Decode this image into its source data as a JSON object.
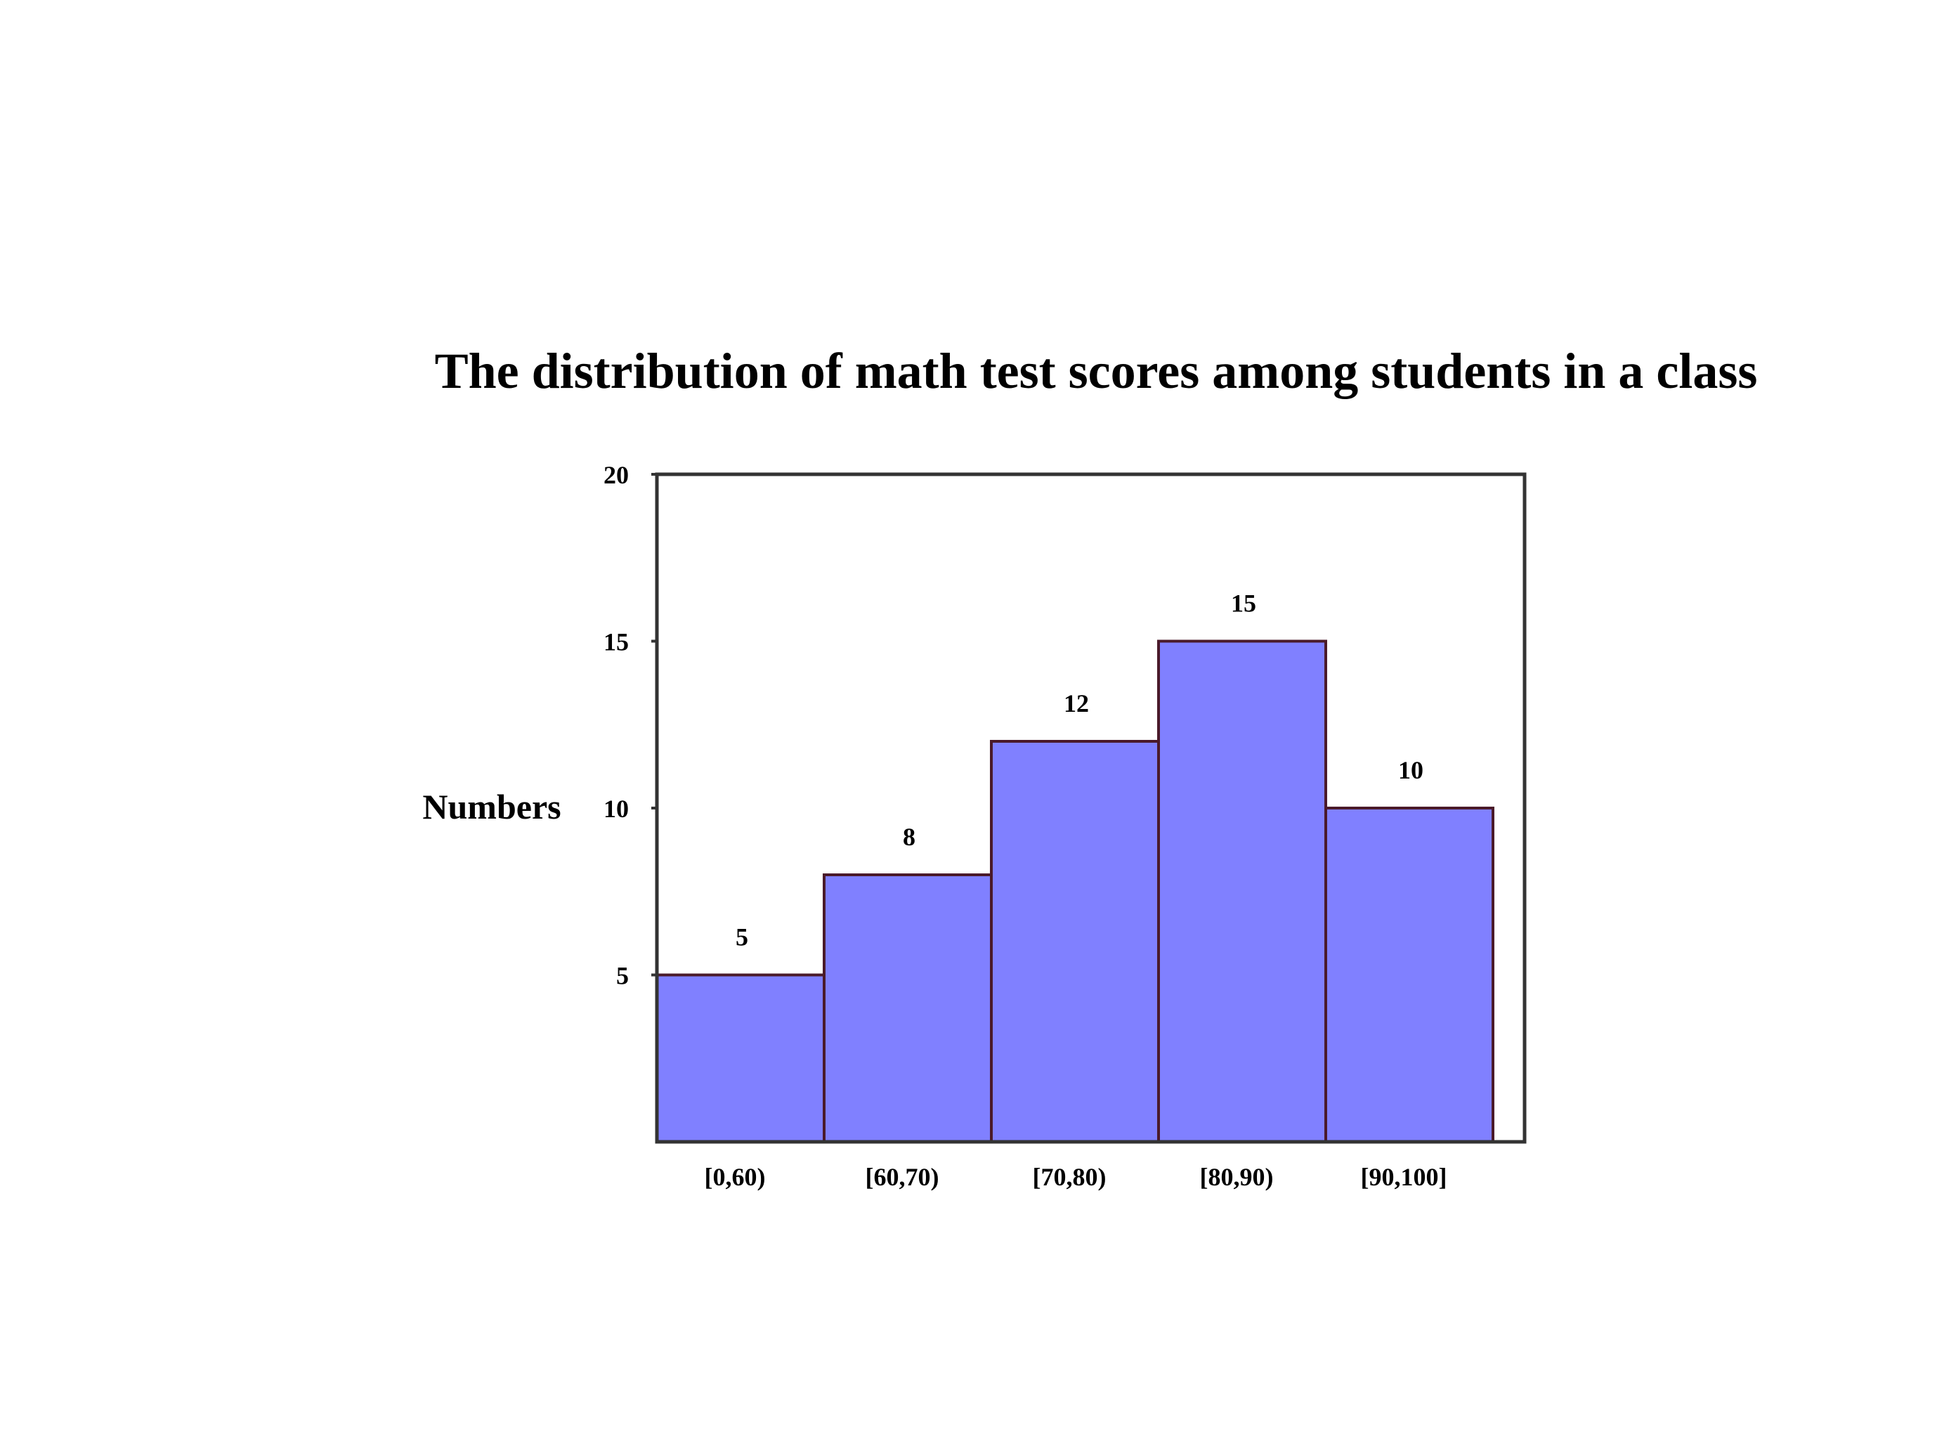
{
  "chart_data": {
    "type": "bar",
    "title": "The distribution of math test scores among students in a class",
    "ylabel": "Numbers",
    "xlabel": "",
    "categories": [
      "[0,60)",
      "[60,70)",
      "[70,80)",
      "[80,90)",
      "[90,100]"
    ],
    "values": [
      5,
      8,
      12,
      15,
      10
    ],
    "ylim": [
      0,
      20
    ],
    "yticks": [
      5,
      10,
      15,
      20
    ],
    "grid": false,
    "legend": "none",
    "bar_color": "#8080ff",
    "bar_edge_color": "#4a1a2a"
  }
}
